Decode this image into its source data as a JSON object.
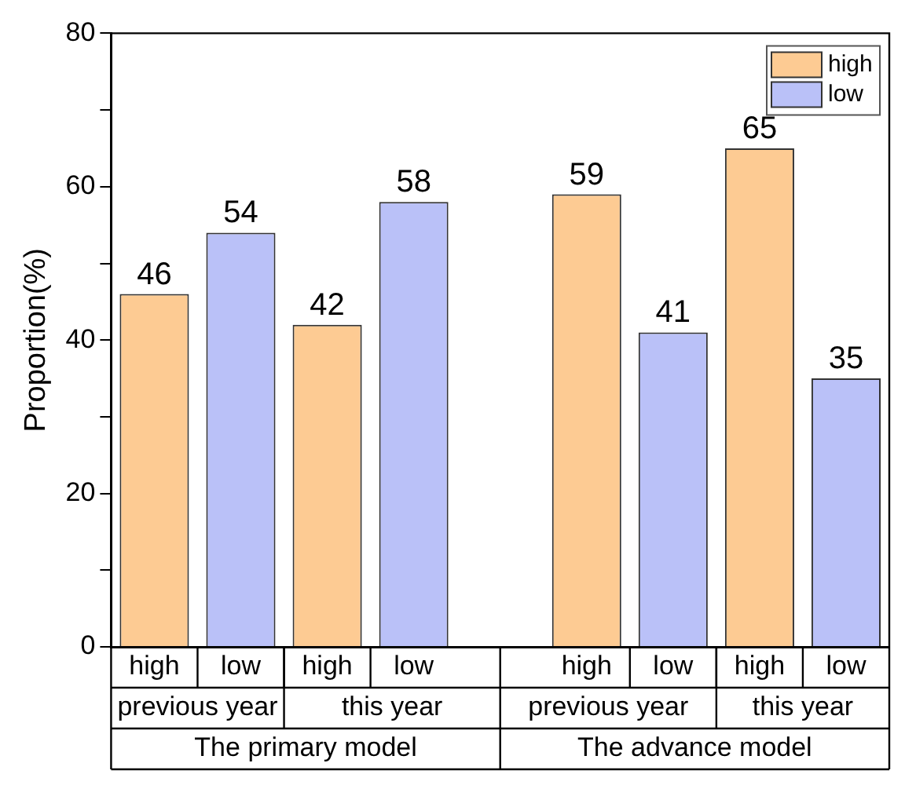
{
  "chart_data": {
    "type": "bar",
    "ylabel": "Proportion(%)",
    "categories": [
      "high",
      "low",
      "high",
      "low",
      null,
      "high",
      "low",
      "high",
      "low"
    ],
    "series": [
      {
        "name": "high",
        "color": "#fdcb93",
        "values": [
          46,
          null,
          42,
          null,
          null,
          59,
          null,
          65,
          null
        ]
      },
      {
        "name": "low",
        "color": "#bac1f8",
        "values": [
          null,
          54,
          null,
          58,
          null,
          null,
          41,
          null,
          35
        ]
      }
    ],
    "annotations": [
      "previous year",
      "this year",
      "previous year",
      "this year",
      "The primary model",
      "The advance model"
    ],
    "ylim": [
      0,
      80
    ],
    "yticks": [
      0,
      {
        "value": 10,
        "label": null
      },
      20,
      {
        "value": 30,
        "label": null
      },
      40,
      {
        "value": 50,
        "label": null
      },
      60,
      {
        "value": 70,
        "label": null
      },
      80
    ],
    "grid": false,
    "legend": "top right",
    "data_labels": true
  }
}
